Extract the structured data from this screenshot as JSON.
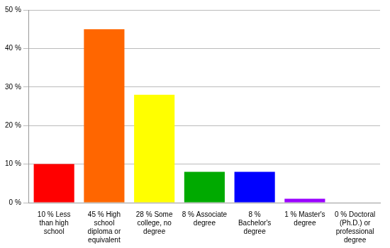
{
  "chart_data": {
    "type": "bar",
    "categories": [
      "10 % Less than high school",
      "45 % High school diploma or equivalent",
      "28 % Some college, no degree",
      "8 % Associate degree",
      "8 % Bachelor's degree",
      "1 % Master's degree",
      "0 % Doctoral (Ph.D.) or professional degree"
    ],
    "values": [
      10,
      45,
      28,
      8,
      8,
      1,
      0
    ],
    "colors": [
      "#ff0000",
      "#ff6600",
      "#ffff00",
      "#00aa00",
      "#0000ff",
      "#9900ff",
      "#ff00ff"
    ],
    "ylim": [
      0,
      50
    ],
    "yticks": [
      {
        "value": 0,
        "label": "0 %"
      },
      {
        "value": 10,
        "label": "10 %"
      },
      {
        "value": 20,
        "label": "20 %"
      },
      {
        "value": 30,
        "label": "30 %"
      },
      {
        "value": 40,
        "label": "40 %"
      },
      {
        "value": 50,
        "label": "50 %"
      }
    ],
    "grid": true
  }
}
